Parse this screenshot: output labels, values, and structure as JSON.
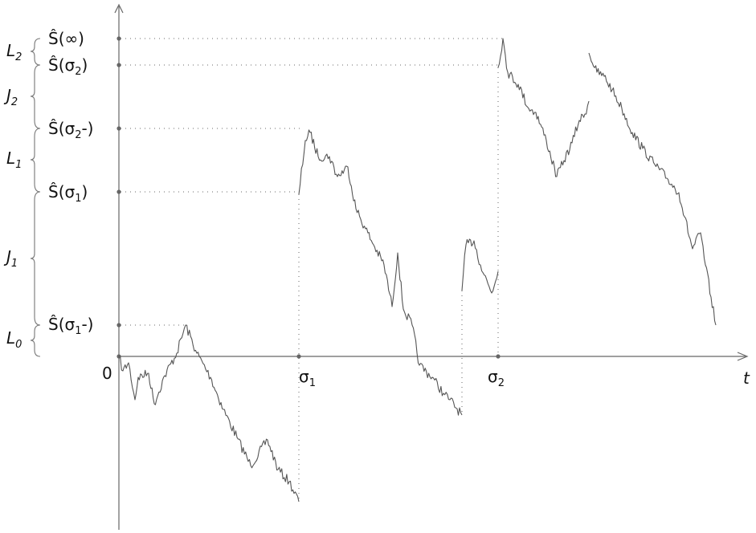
{
  "axes": {
    "origin_label": "0",
    "x_axis_label": "t"
  },
  "x_ticks": [
    {
      "label": "σ",
      "sub": "1"
    },
    {
      "label": "σ",
      "sub": "2"
    }
  ],
  "y_markers": [
    {
      "label": "Ŝ(∞)",
      "base": "Ŝ(∞)",
      "sub": "",
      "suffix": ""
    },
    {
      "label": "Ŝ(σ₂)",
      "base": "Ŝ(σ",
      "sub": "2",
      "suffix": ")"
    },
    {
      "label": "Ŝ(σ₂-)",
      "base": "Ŝ(σ",
      "sub": "2",
      "suffix": "-)"
    },
    {
      "label": "Ŝ(σ₁)",
      "base": "Ŝ(σ",
      "sub": "1",
      "suffix": ")"
    },
    {
      "label": "Ŝ(σ₁-)",
      "base": "Ŝ(σ",
      "sub": "1",
      "suffix": "-)"
    }
  ],
  "brace_labels": [
    {
      "label": "L",
      "sub": "2"
    },
    {
      "label": "J",
      "sub": "2"
    },
    {
      "label": "L",
      "sub": "1"
    },
    {
      "label": "J",
      "sub": "1"
    },
    {
      "label": "L",
      "sub": "0"
    }
  ]
}
